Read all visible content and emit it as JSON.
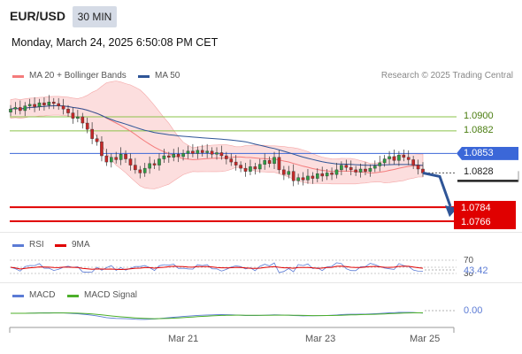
{
  "header": {
    "symbol": "EUR/USD",
    "timeframe": "30 MIN",
    "datetime": "Monday, March 24, 2025 6:50:08 PM CET"
  },
  "legend": {
    "ma20": "MA 20 + Bollinger Bands",
    "ma50": "MA 50",
    "research": "Research © 2025 Trading Central",
    "colors": {
      "ma20": "#f47b7b",
      "ma50": "#2f5597"
    }
  },
  "chart_data": {
    "type": "candlestick",
    "price_range": [
      1.075,
      1.095
    ],
    "levels": [
      {
        "label": "1.0900",
        "value": 1.09,
        "kind": "resistance",
        "color": "#8bc34a"
      },
      {
        "label": "1.0882",
        "value": 1.0882,
        "kind": "resistance",
        "color": "#8bc34a"
      },
      {
        "label": "1.0853",
        "value": 1.0853,
        "kind": "pivot",
        "color": "#3b67d8"
      },
      {
        "label": "1.0828",
        "value": 1.0828,
        "kind": "last",
        "color": "#222222"
      },
      {
        "label": "1.0784",
        "value": 1.0784,
        "kind": "support",
        "color": "#e00000"
      },
      {
        "label": "1.0766",
        "value": 1.0766,
        "kind": "support",
        "color": "#e00000"
      }
    ],
    "closes": [
      1.091,
      1.0912,
      1.0908,
      1.0914,
      1.0916,
      1.0913,
      1.0918,
      1.0915,
      1.0919,
      1.0917,
      1.0914,
      1.091,
      1.0905,
      1.0898,
      1.09,
      1.0892,
      1.0884,
      1.0872,
      1.0868,
      1.085,
      1.0842,
      1.0848,
      1.0845,
      1.0852,
      1.0846,
      1.0838,
      1.0832,
      1.0828,
      1.0834,
      1.084,
      1.0838,
      1.0846,
      1.085,
      1.0848,
      1.0852,
      1.0849,
      1.0853,
      1.0856,
      1.0853,
      1.0857,
      1.0854,
      1.0856,
      1.0852,
      1.0854,
      1.085,
      1.0846,
      1.0842,
      1.0838,
      1.0834,
      1.083,
      1.0836,
      1.0833,
      1.0839,
      1.0844,
      1.084,
      1.0848,
      1.0832,
      1.0826,
      1.083,
      1.0818,
      1.0822,
      1.0819,
      1.0824,
      1.0821,
      1.0827,
      1.0824,
      1.0828,
      1.0826,
      1.0832,
      1.0838,
      1.0835,
      1.0832,
      1.0829,
      1.0833,
      1.083,
      1.0834,
      1.0837,
      1.0841,
      1.0846,
      1.0849,
      1.0844,
      1.0851,
      1.0848,
      1.0845,
      1.0838,
      1.0833,
      1.0828
    ],
    "projection": {
      "from": 1.0828,
      "to": 1.0775
    },
    "rsi": {
      "name": "RSI",
      "ma_name": "9MA",
      "level": "70",
      "value": "43.42",
      "lower": "30"
    },
    "macd": {
      "name": "MACD",
      "signal_name": "MACD Signal",
      "value": "0.00"
    },
    "x_ticks": [
      "Mar 21",
      "Mar 23",
      "Mar 25"
    ],
    "colors": {
      "up": "#2e9d44",
      "down": "#c62828",
      "band": "#fbd3d3",
      "rsi": "#5b7bd5",
      "rsi_ma": "#e00000",
      "macd": "#5b7bd5",
      "macd_signal": "#4caf2a"
    }
  }
}
